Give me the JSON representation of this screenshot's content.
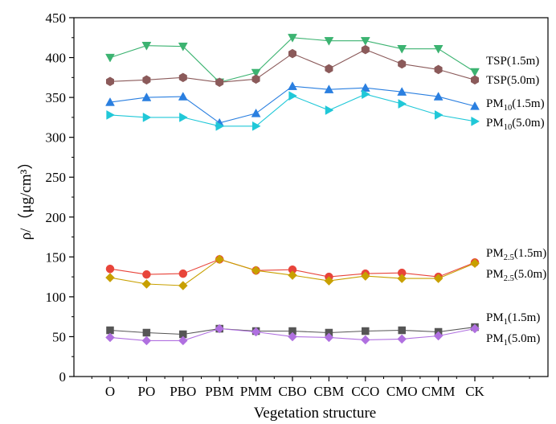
{
  "chart_data": {
    "type": "line",
    "title": "",
    "xlabel": "Vegetation structure",
    "ylabel": "ρ/（μg/cm³）",
    "ylim": [
      0,
      450
    ],
    "yticks": [
      0,
      50,
      100,
      150,
      200,
      250,
      300,
      350,
      400,
      450
    ],
    "categories": [
      "O",
      "PO",
      "PBO",
      "PBM",
      "PMM",
      "CBO",
      "CBM",
      "CCO",
      "CMO",
      "CMM",
      "CK"
    ],
    "grid": false,
    "legend": "right-side labels",
    "series": [
      {
        "name": "TSP(1.5m)",
        "label_main": "TSP",
        "label_sub": "",
        "label_tail": "(1.5m)",
        "color": "#3cb371",
        "marker": "triangle-down",
        "values": [
          400,
          415,
          414,
          369,
          381,
          425,
          421,
          421,
          411,
          411,
          382
        ]
      },
      {
        "name": "TSP(5.0m)",
        "label_main": "TSP",
        "label_sub": "",
        "label_tail": "(5.0m)",
        "color": "#8b5a5a",
        "marker": "hexagon",
        "values": [
          370,
          372,
          375,
          369,
          373,
          405,
          386,
          410,
          392,
          385,
          372
        ]
      },
      {
        "name": "PM10(1.5m)",
        "label_main": "PM",
        "label_sub": "10",
        "label_tail": "(1.5m)",
        "color": "#2a7fe0",
        "marker": "triangle-up",
        "values": [
          344,
          350,
          351,
          318,
          330,
          364,
          360,
          362,
          357,
          351,
          339
        ]
      },
      {
        "name": "PM10(5.0m)",
        "label_main": "PM",
        "label_sub": "10",
        "label_tail": "(5.0m)",
        "color": "#20c8d8",
        "marker": "triangle-right",
        "values": [
          328,
          325,
          325,
          314,
          314,
          352,
          334,
          354,
          342,
          328,
          320
        ]
      },
      {
        "name": "PM2.5(1.5m)",
        "label_main": "PM",
        "label_sub": "2.5",
        "label_tail": "(1.5m)",
        "color": "#e8443a",
        "marker": "circle",
        "values": [
          135,
          128,
          129,
          147,
          133,
          134,
          125,
          129,
          130,
          125,
          143
        ]
      },
      {
        "name": "PM2.5(5.0m)",
        "label_main": "PM",
        "label_sub": "2.5",
        "label_tail": "(5.0m)",
        "color": "#c8a000",
        "marker": "diamond",
        "values": [
          124,
          116,
          114,
          147,
          133,
          127,
          120,
          126,
          123,
          123,
          142
        ]
      },
      {
        "name": "PM1(1.5m)",
        "label_main": "PM",
        "label_sub": "1",
        "label_tail": "(1.5m)",
        "color": "#555555",
        "marker": "square",
        "values": [
          58,
          55,
          53,
          60,
          57,
          57,
          55,
          57,
          58,
          56,
          62
        ]
      },
      {
        "name": "PM1(5.0m)",
        "label_main": "PM",
        "label_sub": "1",
        "label_tail": "(5.0m)",
        "color": "#b070e0",
        "marker": "diamond",
        "values": [
          49,
          45,
          45,
          60,
          56,
          50,
          49,
          46,
          47,
          51,
          60
        ]
      }
    ]
  }
}
